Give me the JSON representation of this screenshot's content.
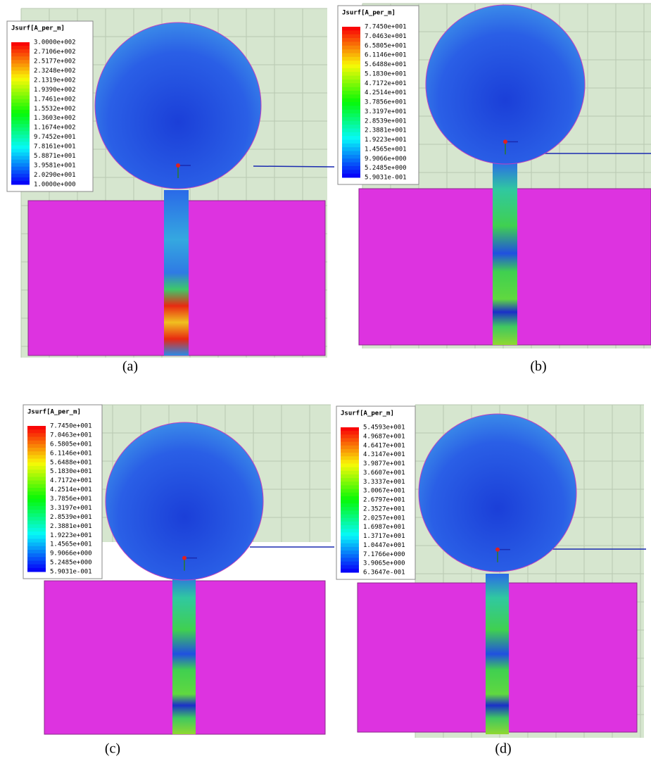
{
  "panels": [
    {
      "legend_title": "Jsurf[A_per_m]",
      "legend_values": [
        "3.0000e+002",
        "2.7106e+002",
        "2.5177e+002",
        "2.3248e+002",
        "2.1319e+002",
        "1.9390e+002",
        "1.7461e+002",
        "1.5532e+002",
        "1.3603e+002",
        "1.1674e+002",
        "9.7452e+001",
        "7.8161e+001",
        "5.8871e+001",
        "3.9581e+001",
        "2.0290e+001",
        "1.0000e+000"
      ],
      "caption": "(a)"
    },
    {
      "legend_title": "Jsurf[A_per_m]",
      "legend_values": [
        "7.7450e+001",
        "7.0463e+001",
        "6.5805e+001",
        "6.1146e+001",
        "5.6488e+001",
        "5.1830e+001",
        "4.7172e+001",
        "4.2514e+001",
        "3.7856e+001",
        "3.3197e+001",
        "2.8539e+001",
        "2.3881e+001",
        "1.9223e+001",
        "1.4565e+001",
        "9.9066e+000",
        "5.2485e+000",
        "5.9031e-001"
      ],
      "caption": "(b)"
    },
    {
      "legend_title": "Jsurf[A_per_m]",
      "legend_values": [
        "7.7450e+001",
        "7.0463e+001",
        "6.5805e+001",
        "6.1146e+001",
        "5.6488e+001",
        "5.1830e+001",
        "4.7172e+001",
        "4.2514e+001",
        "3.7856e+001",
        "3.3197e+001",
        "2.8539e+001",
        "2.3881e+001",
        "1.9223e+001",
        "1.4565e+001",
        "9.9066e+000",
        "5.2485e+000",
        "5.9031e-001"
      ],
      "caption": "(c)"
    },
    {
      "legend_title": "Jsurf[A_per_m]",
      "legend_values": [
        "5.4593e+001",
        "4.9687e+001",
        "4.6417e+001",
        "4.3147e+001",
        "3.9877e+001",
        "3.6607e+001",
        "3.3337e+001",
        "3.0067e+001",
        "2.6797e+001",
        "2.3527e+001",
        "2.0257e+001",
        "1.6987e+001",
        "1.3717e+001",
        "1.0447e+001",
        "7.1766e+000",
        "3.9065e+000",
        "6.3647e-001"
      ],
      "caption": "(d)"
    }
  ]
}
